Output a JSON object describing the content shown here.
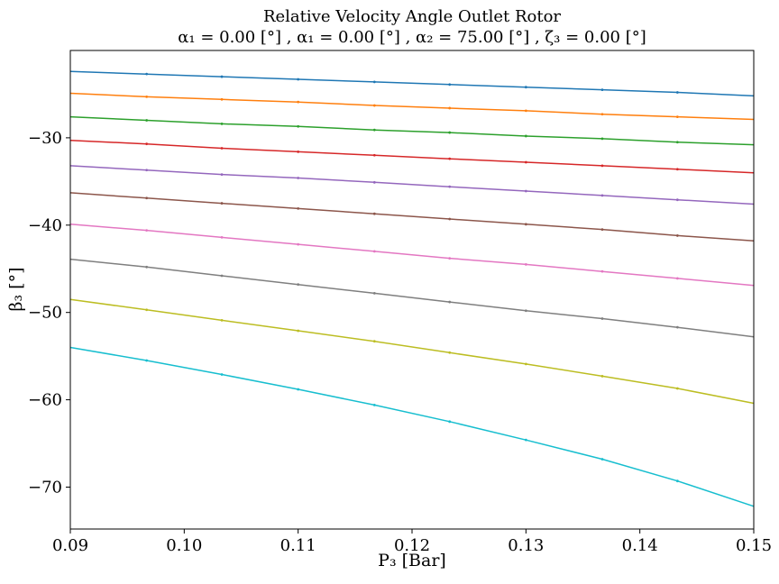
{
  "chart_data": {
    "type": "line",
    "title": "Relative Velocity Angle Outlet Rotor",
    "subtitle": "α₁ = 0.00 [°] , α₁ = 0.00 [°] , α₂ = 75.00 [°] , ζ₃ = 0.00 [°]",
    "xlabel": "P₃ [Bar]",
    "ylabel": "β₃ [°]",
    "xlim": [
      0.09,
      0.15
    ],
    "ylim": [
      -74.8,
      -20.0
    ],
    "xticks": [
      0.09,
      0.1,
      0.11,
      0.12,
      0.13,
      0.14,
      0.15
    ],
    "xtick_labels": [
      "0.09",
      "0.10",
      "0.11",
      "0.12",
      "0.13",
      "0.14",
      "0.15"
    ],
    "yticks": [
      -30,
      -40,
      -50,
      -60,
      -70
    ],
    "ytick_labels": [
      "−30",
      "−40",
      "−50",
      "−60",
      "−70"
    ],
    "grid": false,
    "x": [
      0.09,
      0.0967,
      0.1033,
      0.11,
      0.1167,
      0.1233,
      0.13,
      0.1367,
      0.1433,
      0.15
    ],
    "series": [
      {
        "color": "#1f77b4",
        "values": [
          -22.4,
          -22.7,
          -23.0,
          -23.3,
          -23.6,
          -23.9,
          -24.2,
          -24.5,
          -24.8,
          -25.2
        ]
      },
      {
        "color": "#ff7f0e",
        "values": [
          -24.9,
          -25.3,
          -25.6,
          -25.9,
          -26.3,
          -26.6,
          -26.9,
          -27.3,
          -27.6,
          -27.9
        ]
      },
      {
        "color": "#2ca02c",
        "values": [
          -27.6,
          -28.0,
          -28.4,
          -28.7,
          -29.1,
          -29.4,
          -29.8,
          -30.1,
          -30.5,
          -30.8
        ]
      },
      {
        "color": "#d62728",
        "values": [
          -30.3,
          -30.7,
          -31.2,
          -31.6,
          -32.0,
          -32.4,
          -32.8,
          -33.2,
          -33.6,
          -34.0
        ]
      },
      {
        "color": "#9467bd",
        "values": [
          -33.2,
          -33.7,
          -34.2,
          -34.6,
          -35.1,
          -35.6,
          -36.1,
          -36.6,
          -37.1,
          -37.6
        ]
      },
      {
        "color": "#8c564b",
        "values": [
          -36.3,
          -36.9,
          -37.5,
          -38.1,
          -38.7,
          -39.3,
          -39.9,
          -40.5,
          -41.2,
          -41.8
        ]
      },
      {
        "color": "#e377c2",
        "values": [
          -39.9,
          -40.6,
          -41.4,
          -42.2,
          -43.0,
          -43.8,
          -44.5,
          -45.3,
          -46.1,
          -46.9
        ]
      },
      {
        "color": "#7f7f7f",
        "values": [
          -43.9,
          -44.8,
          -45.8,
          -46.8,
          -47.8,
          -48.8,
          -49.8,
          -50.7,
          -51.7,
          -52.8
        ]
      },
      {
        "color": "#bcbd22",
        "values": [
          -48.5,
          -49.7,
          -50.9,
          -52.1,
          -53.3,
          -54.6,
          -55.9,
          -57.3,
          -58.7,
          -60.4
        ]
      },
      {
        "color": "#17becf",
        "values": [
          -54.0,
          -55.5,
          -57.1,
          -58.8,
          -60.6,
          -62.5,
          -64.6,
          -66.8,
          -69.3,
          -72.2
        ]
      }
    ]
  }
}
